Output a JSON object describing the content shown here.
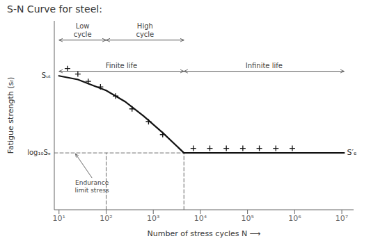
{
  "chart_data": {
    "type": "line",
    "title": "S-N Curve for steel:",
    "xlabel": "Number of stress cycles N ⟶",
    "ylabel": "Fatigue strength (sᵣ)",
    "log": "x",
    "xlim": [
      7.943282347242815,
      17782794.10038923
    ],
    "ylim": [
      0.05,
      1.08
    ],
    "xticks": [
      {
        "value": 10,
        "label": "10¹"
      },
      {
        "value": 100,
        "label": "10²"
      },
      {
        "value": 1000,
        "label": "10³"
      },
      {
        "value": 10000,
        "label": "10⁴"
      },
      {
        "value": 100000,
        "label": "10⁵"
      },
      {
        "value": 1000000,
        "label": "10⁶"
      },
      {
        "value": 10000000,
        "label": "10⁷"
      }
    ],
    "yticks": [],
    "tick_labels": "x",
    "grid": false,
    "series": [
      {
        "type": "line",
        "color": "#111111",
        "x": [
          10,
          25.118864315095795,
          50.11872336272722,
          100,
          251.18864315095797,
          630.957344480193,
          1584.893192461114,
          4466.835921509635
        ],
        "values": [
          0.78,
          0.76,
          0.73,
          0.7,
          0.64,
          0.56,
          0.47,
          0.36
        ]
      },
      {
        "type": "line",
        "color": "#111111",
        "x": [
          4466.835921509635,
          11220184.543019634
        ],
        "values": [
          0.36,
          0.36
        ]
      },
      {
        "type": "scatter",
        "marker": "plus",
        "color": "#111111",
        "x": [
          15.135612484362087,
          25.118864315095795,
          41.68693834703355,
          75.85775750291836,
          158.48931924611142,
          354.81338923357566,
          794.3282347242813,
          1584.893192461114
        ],
        "values": [
          0.82,
          0.79,
          0.75,
          0.72,
          0.67,
          0.6,
          0.53,
          0.46
        ]
      },
      {
        "type": "scatter",
        "marker": "plus",
        "color": "#111111",
        "x": [
          7079.457843841374,
          15848.93192461114,
          35481.33892335757,
          79432.82347242822,
          177827.94100389228,
          398107.1705534969,
          891250.9381337459
        ],
        "values": [
          0.385,
          0.385,
          0.385,
          0.385,
          0.385,
          0.385,
          0.385
        ]
      },
      {
        "type": "line",
        "line_style": "dashed",
        "color": "#666666",
        "x": [
          100,
          100
        ],
        "values": [
          0.05,
          0.36
        ]
      },
      {
        "type": "line",
        "line_style": "dashed",
        "color": "#666666",
        "x": [
          4466.835921509635,
          4466.835921509635
        ],
        "values": [
          0.05,
          0.36
        ]
      },
      {
        "type": "line",
        "line_style": "dashed",
        "color": "#666666",
        "x": [
          7.943282347242815,
          4466.835921509635
        ],
        "values": [
          0.36,
          0.36
        ]
      }
    ],
    "annotations": [
      {
        "text": "Sᵤₜ",
        "y": 0.78
      },
      {
        "text": "log₁₀Sₑ",
        "y": 0.36
      },
      {
        "text": "S′ₑ",
        "x": 12022644.346174128,
        "y": 0.36
      },
      {
        "text": "Endurance\nlimit stress",
        "x": 50.11872336272722,
        "y": 0.22,
        "arrow_to": [
          22.387211385683397,
          0.355
        ],
        "color": "#444444"
      },
      {
        "text": "Low\ncycle",
        "span": [
          10,
          100
        ],
        "y": 0.975,
        "color": "#444444"
      },
      {
        "text": "High\ncycle",
        "span": [
          100,
          4466.835921509635
        ],
        "y": 0.975,
        "color": "#444444"
      },
      {
        "text": "Finite life",
        "span": [
          10,
          4466.835921509635
        ],
        "y": 0.805,
        "color": "#444444"
      },
      {
        "text": "Infinite life",
        "span": [
          4466.835921509635,
          11220184.543019634
        ],
        "y": 0.805,
        "color": "#444444"
      }
    ]
  }
}
